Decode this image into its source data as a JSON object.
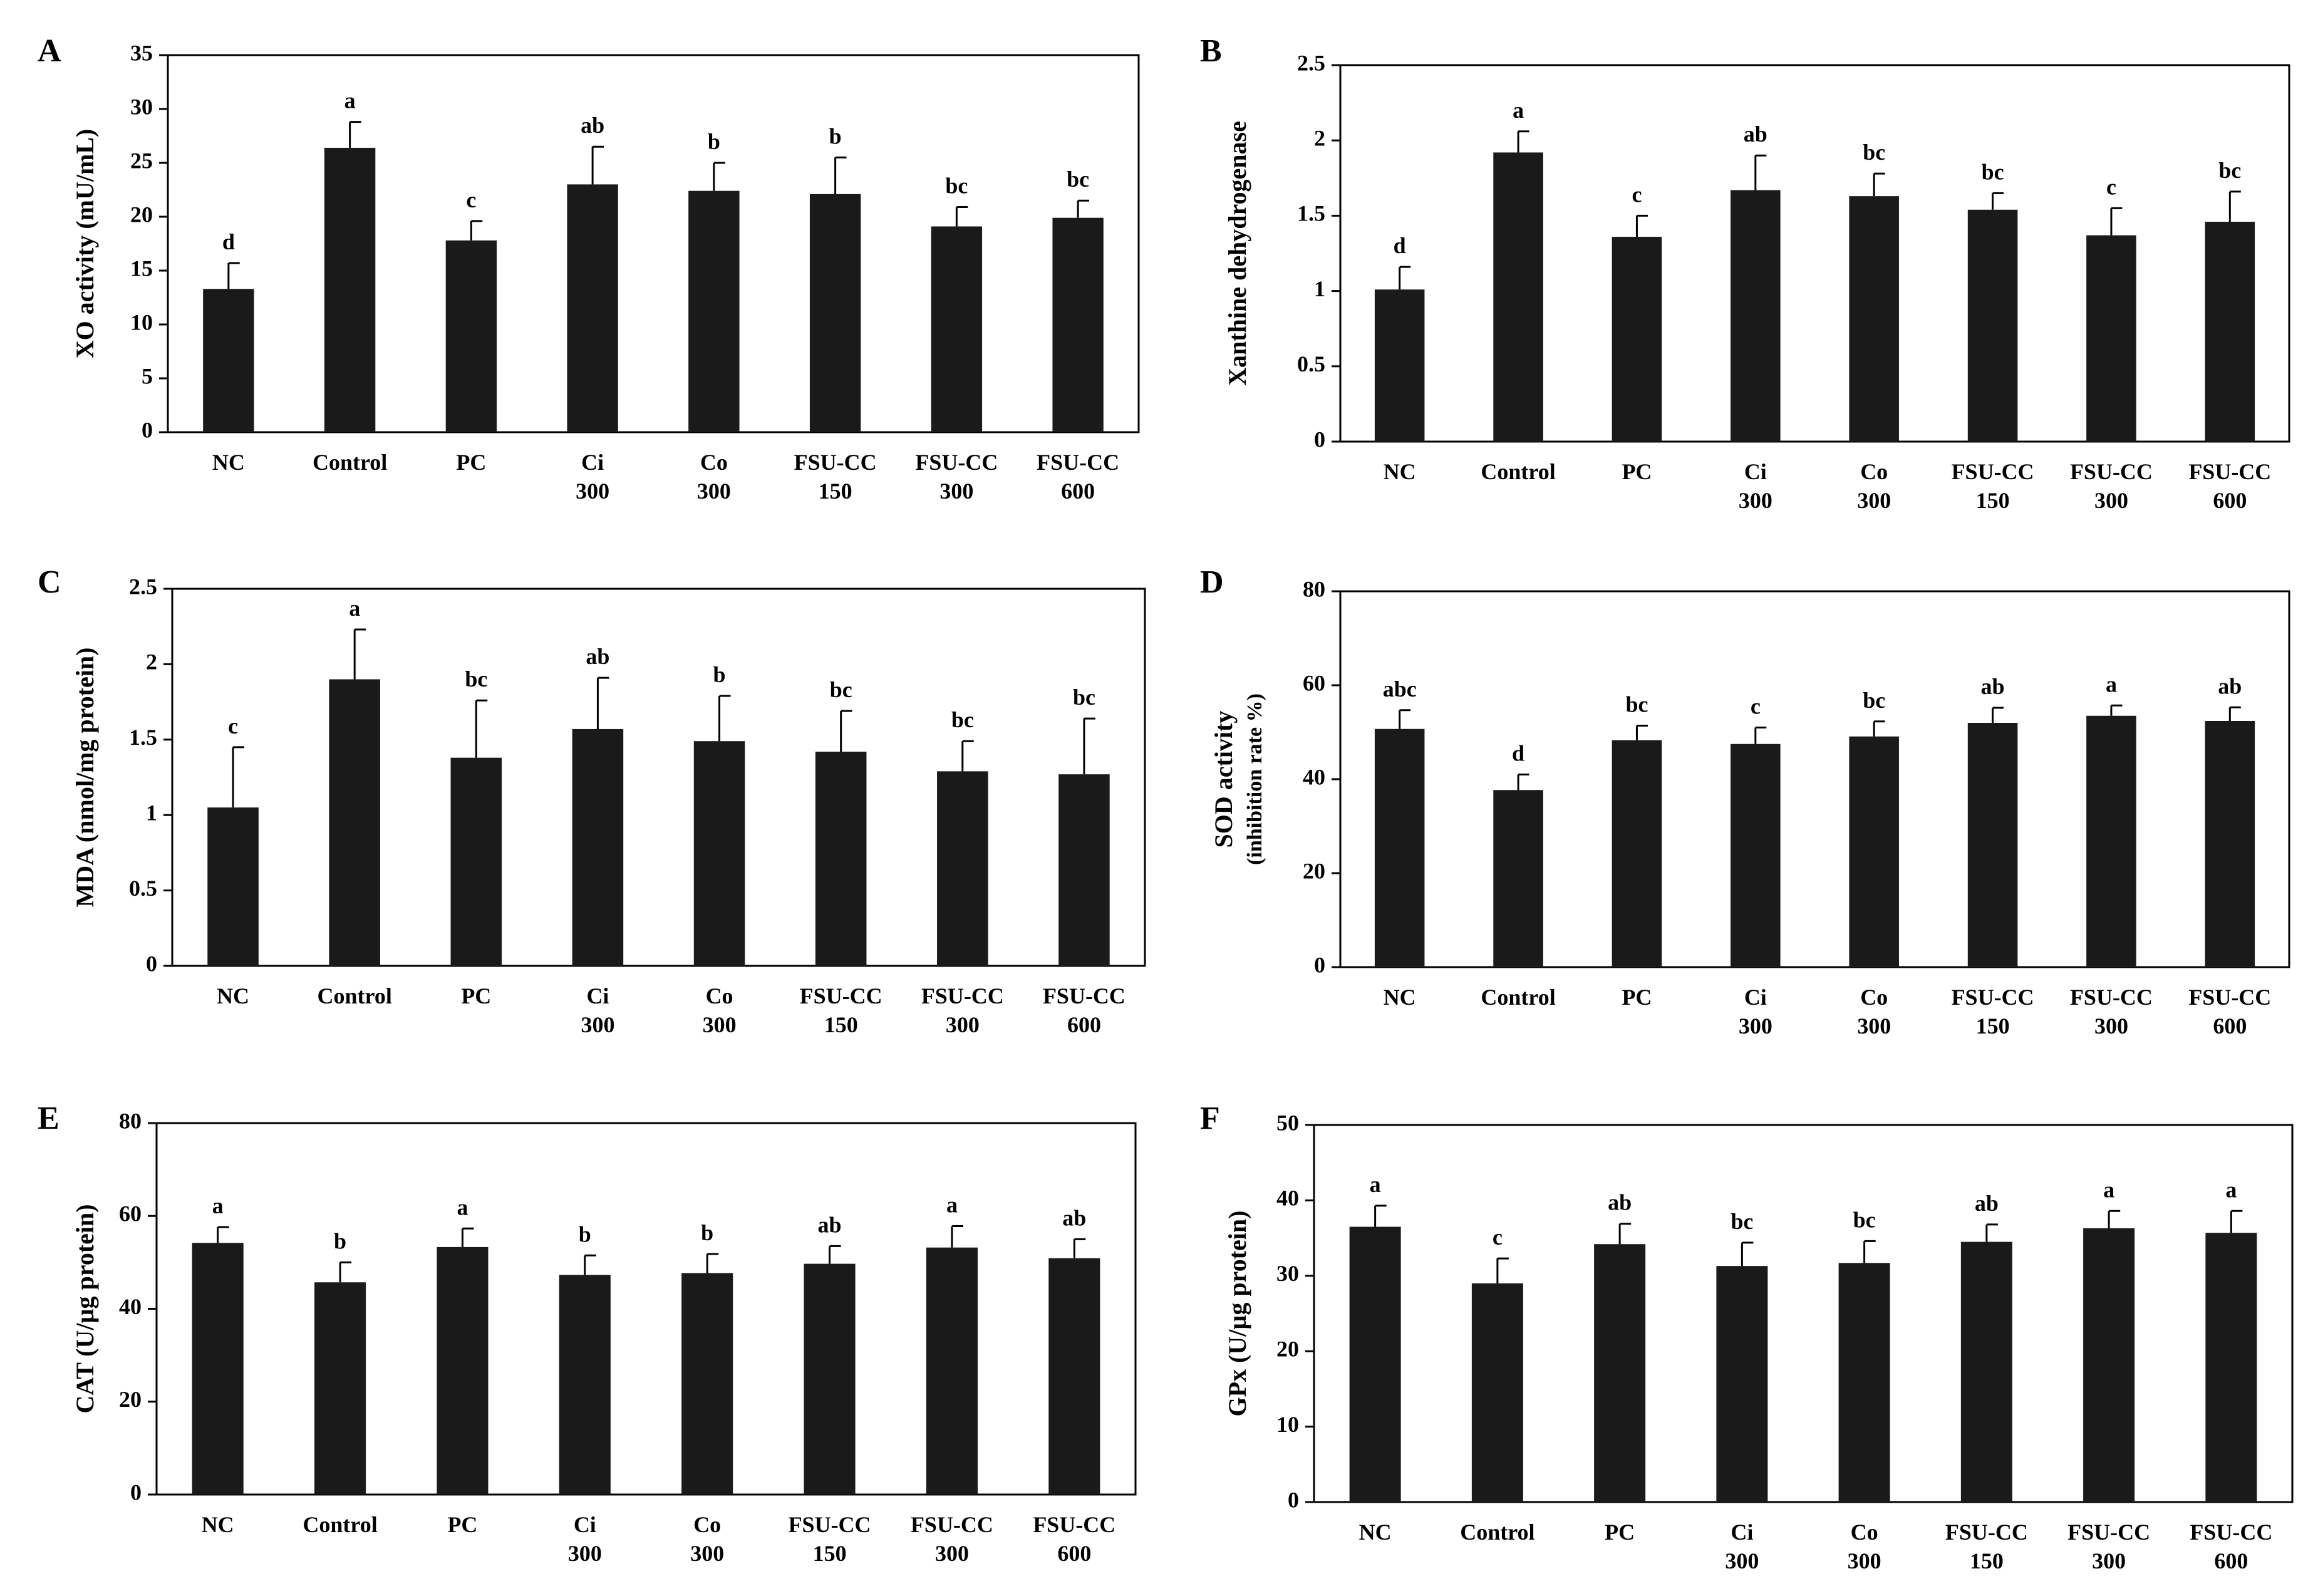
{
  "figure": {
    "bar_color": "#1a1a1a",
    "axis_color": "#000000"
  },
  "chart_data": [
    {
      "panel": "A",
      "type": "bar",
      "title": "",
      "xlabel": "",
      "ylabel": "XO activity (mU/mL)",
      "ylabel_sub": "",
      "categories": [
        [
          "NC"
        ],
        [
          "Control"
        ],
        [
          "PC"
        ],
        [
          "Ci",
          "300"
        ],
        [
          "Co",
          "300"
        ],
        [
          "FSU-CC",
          "150"
        ],
        [
          "FSU-CC",
          "300"
        ],
        [
          "FSU-CC",
          "600"
        ]
      ],
      "values": [
        13.3,
        26.4,
        17.8,
        23.0,
        22.4,
        22.1,
        19.1,
        19.9
      ],
      "errors": [
        2.4,
        2.4,
        1.8,
        3.5,
        2.6,
        3.4,
        1.8,
        1.6
      ],
      "letters": [
        "d",
        "a",
        "c",
        "ab",
        "b",
        "b",
        "bc",
        "bc"
      ],
      "ylim": [
        0,
        35
      ],
      "yticks": [
        0,
        5,
        10,
        15,
        20,
        25,
        30,
        35
      ],
      "ytick_labels": [
        "0",
        "5",
        "10",
        "15",
        "20",
        "25",
        "30",
        "35"
      ]
    },
    {
      "panel": "B",
      "type": "bar",
      "title": "",
      "xlabel": "",
      "ylabel": "Xanthine dehydrogenase",
      "ylabel_sub": "",
      "categories": [
        [
          "NC"
        ],
        [
          "Control"
        ],
        [
          "PC"
        ],
        [
          "Ci",
          "300"
        ],
        [
          "Co",
          "300"
        ],
        [
          "FSU-CC",
          "150"
        ],
        [
          "FSU-CC",
          "300"
        ],
        [
          "FSU-CC",
          "600"
        ]
      ],
      "values": [
        1.01,
        1.92,
        1.36,
        1.67,
        1.63,
        1.54,
        1.37,
        1.46
      ],
      "errors": [
        0.15,
        0.14,
        0.14,
        0.23,
        0.15,
        0.11,
        0.18,
        0.2
      ],
      "letters": [
        "d",
        "a",
        "c",
        "ab",
        "bc",
        "bc",
        "c",
        "bc"
      ],
      "ylim": [
        0,
        2.5
      ],
      "yticks": [
        0,
        0.5,
        1,
        1.5,
        2,
        2.5
      ],
      "ytick_labels": [
        "0",
        "0.5",
        "1",
        "1.5",
        "2",
        "2.5"
      ]
    },
    {
      "panel": "C",
      "type": "bar",
      "title": "",
      "xlabel": "",
      "ylabel": "MDA (nmol/mg protein)",
      "ylabel_sub": "",
      "categories": [
        [
          "NC"
        ],
        [
          "Control"
        ],
        [
          "PC"
        ],
        [
          "Ci",
          "300"
        ],
        [
          "Co",
          "300"
        ],
        [
          "FSU-CC",
          "150"
        ],
        [
          "FSU-CC",
          "300"
        ],
        [
          "FSU-CC",
          "600"
        ]
      ],
      "values": [
        1.05,
        1.9,
        1.38,
        1.57,
        1.49,
        1.42,
        1.29,
        1.27
      ],
      "errors": [
        0.4,
        0.33,
        0.38,
        0.34,
        0.3,
        0.27,
        0.2,
        0.37
      ],
      "letters": [
        "c",
        "a",
        "bc",
        "ab",
        "b",
        "bc",
        "bc",
        "bc"
      ],
      "ylim": [
        0,
        2.5
      ],
      "yticks": [
        0,
        0.5,
        1,
        1.5,
        2,
        2.5
      ],
      "ytick_labels": [
        "0",
        "0.5",
        "1",
        "1.5",
        "2",
        "2.5"
      ]
    },
    {
      "panel": "D",
      "type": "bar",
      "title": "",
      "xlabel": "",
      "ylabel": "SOD activity",
      "ylabel_sub": "(inhibition rate %)",
      "categories": [
        [
          "NC"
        ],
        [
          "Control"
        ],
        [
          "PC"
        ],
        [
          "Ci",
          "300"
        ],
        [
          "Co",
          "300"
        ],
        [
          "FSU-CC",
          "150"
        ],
        [
          "FSU-CC",
          "300"
        ],
        [
          "FSU-CC",
          "600"
        ]
      ],
      "values": [
        50.7,
        37.7,
        48.3,
        47.5,
        49.1,
        52.0,
        53.5,
        52.4
      ],
      "errors": [
        4.0,
        3.3,
        3.1,
        3.5,
        3.2,
        3.2,
        2.2,
        2.9
      ],
      "letters": [
        "abc",
        "d",
        "bc",
        "c",
        "bc",
        "ab",
        "a",
        "ab"
      ],
      "ylim": [
        0,
        80
      ],
      "yticks": [
        0,
        20,
        40,
        60,
        80
      ],
      "ytick_labels": [
        "0",
        "20",
        "40",
        "60",
        "80"
      ]
    },
    {
      "panel": "E",
      "type": "bar",
      "title": "",
      "xlabel": "",
      "ylabel": "CAT (U/µg protein)",
      "ylabel_sub": "",
      "categories": [
        [
          "NC"
        ],
        [
          "Control"
        ],
        [
          "PC"
        ],
        [
          "Ci",
          "300"
        ],
        [
          "Co",
          "300"
        ],
        [
          "FSU-CC",
          "150"
        ],
        [
          "FSU-CC",
          "300"
        ],
        [
          "FSU-CC",
          "600"
        ]
      ],
      "values": [
        54.2,
        45.7,
        53.3,
        47.3,
        47.7,
        49.7,
        53.2,
        50.9
      ],
      "errors": [
        3.4,
        4.3,
        4.0,
        4.2,
        4.1,
        3.8,
        4.6,
        4.1
      ],
      "letters": [
        "a",
        "b",
        "a",
        "b",
        "b",
        "ab",
        "a",
        "ab"
      ],
      "ylim": [
        0,
        80
      ],
      "yticks": [
        0,
        20,
        40,
        60,
        80
      ],
      "ytick_labels": [
        "0",
        "20",
        "40",
        "60",
        "80"
      ]
    },
    {
      "panel": "F",
      "type": "bar",
      "title": "",
      "xlabel": "",
      "ylabel": "GPx (U/µg protein)",
      "ylabel_sub": "",
      "categories": [
        [
          "NC"
        ],
        [
          "Control"
        ],
        [
          "PC"
        ],
        [
          "Ci",
          "300"
        ],
        [
          "Co",
          "300"
        ],
        [
          "FSU-CC",
          "150"
        ],
        [
          "FSU-CC",
          "300"
        ],
        [
          "FSU-CC",
          "600"
        ]
      ],
      "values": [
        36.5,
        29.0,
        34.2,
        31.3,
        31.7,
        34.5,
        36.3,
        35.7
      ],
      "errors": [
        2.8,
        3.3,
        2.7,
        3.1,
        2.9,
        2.3,
        2.3,
        2.9
      ],
      "letters": [
        "a",
        "c",
        "ab",
        "bc",
        "bc",
        "ab",
        "a",
        "a"
      ],
      "ylim": [
        0,
        50
      ],
      "yticks": [
        0,
        10,
        20,
        30,
        40,
        50
      ],
      "ytick_labels": [
        "0",
        "10",
        "20",
        "30",
        "40",
        "50"
      ]
    }
  ]
}
